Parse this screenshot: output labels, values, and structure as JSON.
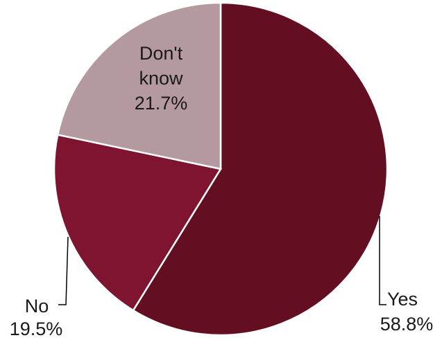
{
  "chart_data": {
    "type": "pie",
    "title": "",
    "slices": [
      {
        "label": "Yes",
        "value": 58.8,
        "value_label": "58.8%",
        "color": "#640e22"
      },
      {
        "label": "No",
        "value": 19.5,
        "value_label": "19.5%",
        "color": "#7e1430"
      },
      {
        "label": "Don't",
        "label2": "know",
        "value": 21.7,
        "value_label": "21.7%",
        "color": "#b49a9e"
      }
    ],
    "start_angle_deg": 0,
    "direction": "clockwise",
    "legend": "none"
  }
}
